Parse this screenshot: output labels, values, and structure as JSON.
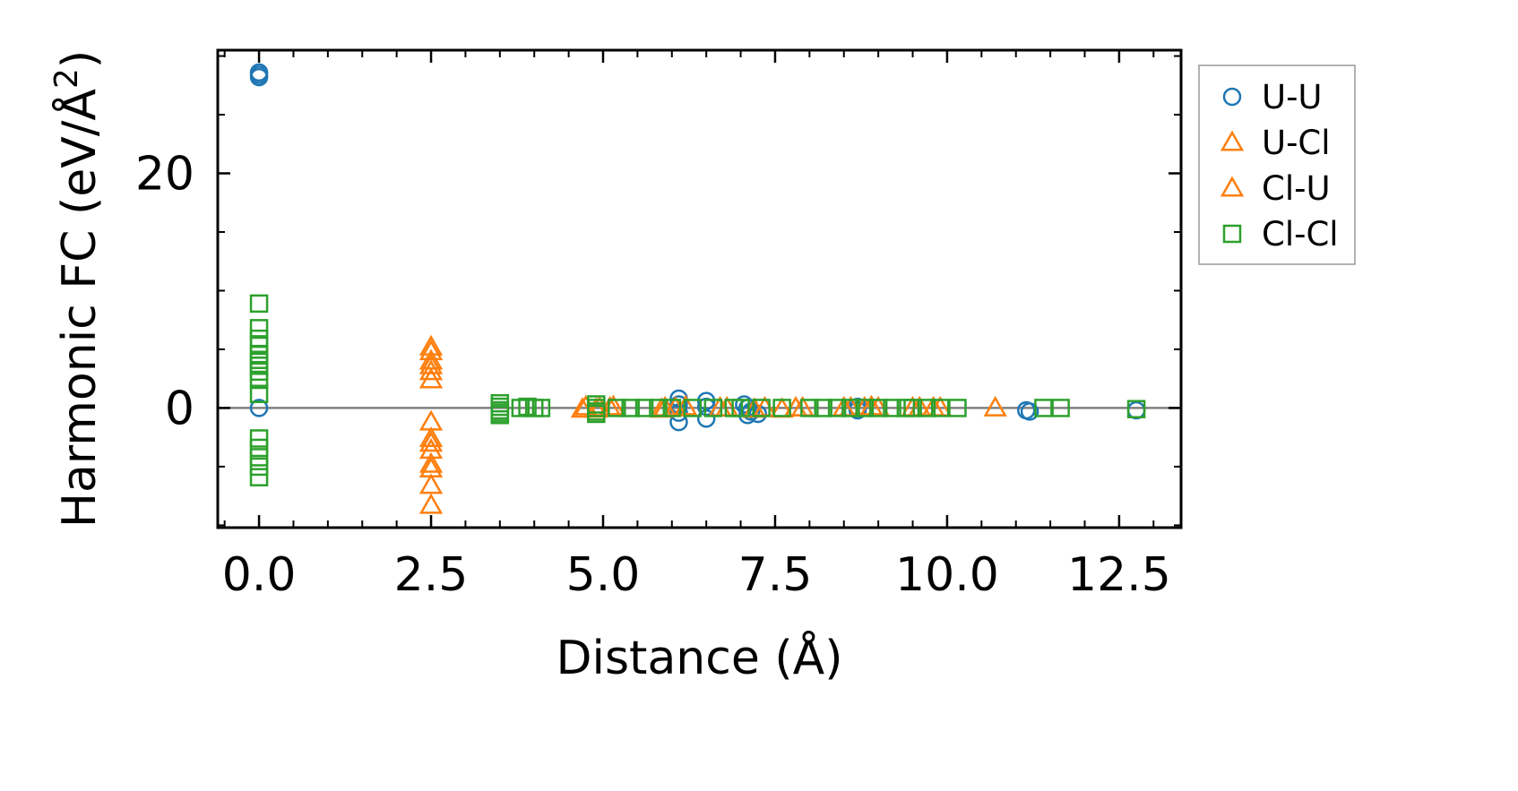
{
  "chart_data": {
    "type": "scatter",
    "xlabel": "Distance (Å)",
    "ylabel": "Harmonic FC (eV/Å²)",
    "xlim": [
      -0.6,
      13.4
    ],
    "ylim": [
      -10.2,
      30.5
    ],
    "xticks": [
      0.0,
      2.5,
      5.0,
      7.5,
      10.0,
      12.5
    ],
    "xtick_labels": [
      "0.0",
      "2.5",
      "5.0",
      "7.5",
      "10.0",
      "12.5"
    ],
    "yticks": [
      0,
      20
    ],
    "ytick_labels": [
      "0",
      "20"
    ],
    "reference_line_y": 0,
    "legend_position": "outside-right",
    "colors": {
      "U-U": "#1f77b4",
      "U-Cl": "#ff7f0e",
      "Cl-U": "#ff7f0e",
      "Cl-Cl": "#2ca02c"
    },
    "series": [
      {
        "name": "U-U",
        "marker": "circle",
        "x": [
          0.0,
          0.0,
          0.0,
          0.0,
          6.1,
          6.1,
          6.1,
          6.1,
          6.5,
          6.5,
          6.5,
          7.05,
          7.1,
          7.1,
          7.15,
          7.25,
          8.7,
          8.7,
          11.15,
          11.2,
          12.75
        ],
        "y": [
          28.4,
          28.6,
          28.2,
          0.0,
          0.8,
          -1.2,
          0.3,
          -0.4,
          0.6,
          -0.9,
          0.1,
          0.3,
          -0.6,
          0.0,
          -0.3,
          -0.5,
          -0.2,
          0.1,
          -0.2,
          -0.3,
          -0.2
        ]
      },
      {
        "name": "U-Cl",
        "marker": "triangle",
        "x": [
          2.5,
          2.5,
          2.5,
          2.5,
          2.5,
          2.5,
          2.5,
          2.5,
          4.75,
          4.9,
          5.1,
          5.9,
          6.2,
          6.7,
          7.2,
          7.8,
          8.6,
          8.9,
          9.5,
          9.8,
          10.7
        ],
        "y": [
          4.8,
          4.0,
          3.1,
          2.4,
          -1.2,
          -3.0,
          -4.8,
          -8.3,
          0.1,
          -0.1,
          0.0,
          0.0,
          0.1,
          0.0,
          -0.1,
          0.0,
          0.0,
          0.1,
          0.0,
          0.0,
          0.0
        ]
      },
      {
        "name": "Cl-U",
        "marker": "triangle",
        "x": [
          2.5,
          2.5,
          2.5,
          2.5,
          2.5,
          2.5,
          4.7,
          4.95,
          5.15,
          5.85,
          6.05,
          6.8,
          7.35,
          7.6,
          7.9,
          8.5,
          8.8,
          9.0,
          9.6,
          9.9
        ],
        "y": [
          5.2,
          3.6,
          -2.6,
          -3.6,
          -5.2,
          -6.6,
          -0.1,
          0.0,
          0.1,
          -0.1,
          0.0,
          0.0,
          0.0,
          -0.1,
          0.0,
          0.0,
          0.0,
          0.0,
          0.0,
          0.0
        ]
      },
      {
        "name": "Cl-Cl",
        "marker": "square",
        "x": [
          0.0,
          0.0,
          0.0,
          0.0,
          0.0,
          0.0,
          0.0,
          0.0,
          0.0,
          0.0,
          0.0,
          0.0,
          0.0,
          0.0,
          0.0,
          3.5,
          3.5,
          3.5,
          3.5,
          3.5,
          3.8,
          3.9,
          4.0,
          4.1,
          4.9,
          4.9,
          4.9,
          4.9,
          5.2,
          5.4,
          5.6,
          5.8,
          6.0,
          6.3,
          6.6,
          6.9,
          7.0,
          7.3,
          7.6,
          8.0,
          8.2,
          8.4,
          8.6,
          8.8,
          9.0,
          9.2,
          9.4,
          9.5,
          9.7,
          9.9,
          10.15,
          11.4,
          11.65,
          12.75
        ],
        "y": [
          8.9,
          6.8,
          5.9,
          5.3,
          4.6,
          4.1,
          3.6,
          3.1,
          2.4,
          1.2,
          -2.6,
          -3.4,
          -4.2,
          -5.0,
          -5.9,
          0.4,
          0.1,
          -0.2,
          -0.4,
          -0.6,
          0.0,
          0.1,
          0.0,
          0.0,
          0.3,
          0.0,
          -0.3,
          -0.5,
          0.0,
          0.0,
          0.0,
          0.0,
          0.0,
          0.0,
          0.0,
          0.0,
          0.0,
          0.0,
          0.0,
          0.0,
          0.0,
          0.0,
          0.0,
          0.0,
          0.0,
          0.0,
          0.0,
          0.0,
          0.0,
          0.0,
          0.0,
          0.0,
          0.0,
          -0.1
        ]
      }
    ]
  }
}
